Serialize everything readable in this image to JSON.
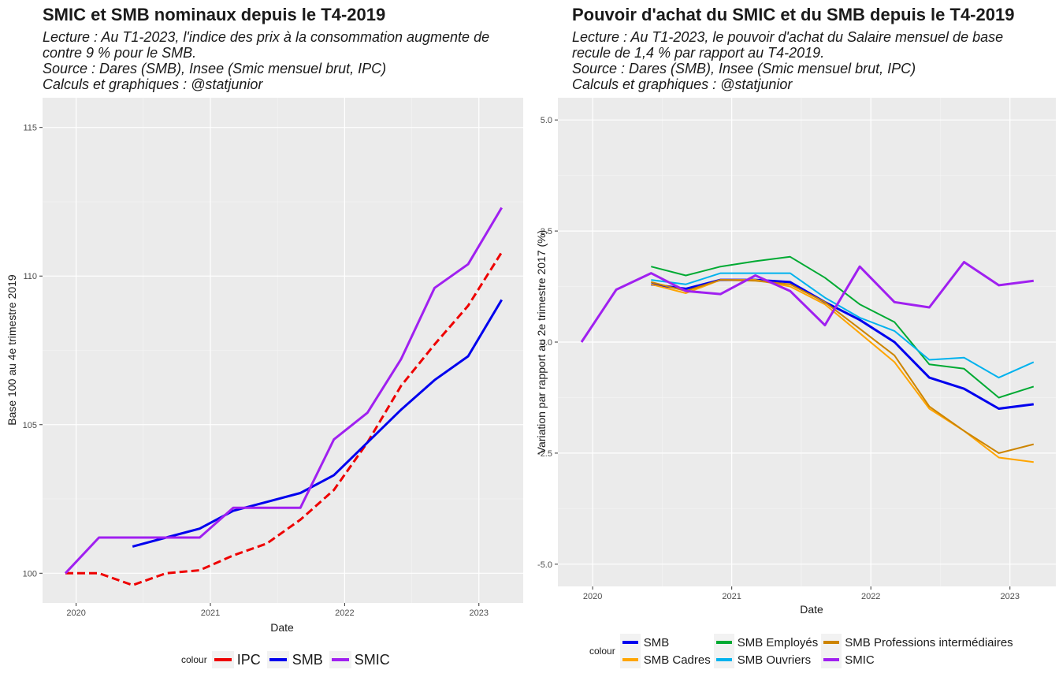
{
  "charts": {
    "left": {
      "title": "SMIC et SMB nominaux depuis le T4-2019",
      "subtitle_lines": [
        "Lecture : Au T1-2023, l'indice des prix à la consommation augmente de",
        "contre 9 % pour le SMB.",
        "Source : Dares (SMB), Insee (Smic mensuel brut, IPC)",
        "Calculs et graphiques : @statjunior"
      ],
      "xlabel": "Date",
      "ylabel": "Base 100 au 4e trimestre 2019",
      "legend_title": "colour"
    },
    "right": {
      "title": "Pouvoir d'achat du SMIC et du SMB depuis le T4-2019",
      "subtitle_lines": [
        "Lecture : Au T1-2023, le pouvoir d'achat du Salaire mensuel de base",
        "recule de 1,4 % par rapport au T4-2019.",
        "Source : Dares (SMB), Insee (Smic mensuel brut, IPC)",
        "Calculs et graphiques : @statjunior"
      ],
      "xlabel": "Date",
      "ylabel": "Variation par rapport au 2e trimestre 2017 (%)",
      "legend_title": "colour"
    }
  },
  "chart_data": [
    {
      "type": "line",
      "title": "SMIC et SMB nominaux depuis le T4-2019",
      "xlabel": "Date",
      "ylabel": "Base 100 au 4e trimestre 2019",
      "xlim": [
        2019.75,
        2023.33
      ],
      "ylim": [
        99.0,
        116.0
      ],
      "x_ticks": [
        2020,
        2021,
        2022,
        2023
      ],
      "y_ticks": [
        100,
        105,
        110,
        115
      ],
      "legend_position": "bottom",
      "series": [
        {
          "name": "IPC",
          "color": "#ee0000",
          "dashed": true,
          "x": [
            2019.92,
            2020.08,
            2020.17,
            2020.42,
            2020.67,
            2020.92,
            2021.17,
            2021.42,
            2021.67,
            2021.92,
            2022.17,
            2022.42,
            2022.67,
            2022.92,
            2023.17
          ],
          "y": [
            100.0,
            100.0,
            100.0,
            99.6,
            100.0,
            100.1,
            100.6,
            101.0,
            101.8,
            102.8,
            104.4,
            106.3,
            107.7,
            109.0,
            110.8
          ]
        },
        {
          "name": "SMB",
          "color": "#0000ee",
          "dashed": false,
          "x": [
            2020.42,
            2020.67,
            2020.92,
            2021.17,
            2021.42,
            2021.67,
            2021.92,
            2022.17,
            2022.42,
            2022.67,
            2022.92,
            2023.17
          ],
          "y": [
            100.9,
            101.2,
            101.5,
            102.1,
            102.4,
            102.7,
            103.3,
            104.4,
            105.5,
            106.5,
            107.3,
            109.2
          ]
        },
        {
          "name": "SMIC",
          "color": "#a020f0",
          "dashed": false,
          "x": [
            2019.92,
            2020.17,
            2020.42,
            2020.67,
            2020.92,
            2021.17,
            2021.42,
            2021.67,
            2021.92,
            2022.17,
            2022.42,
            2022.67,
            2022.92,
            2023.17
          ],
          "y": [
            100.0,
            101.2,
            101.2,
            101.2,
            101.2,
            102.2,
            102.2,
            102.2,
            104.5,
            105.4,
            107.2,
            109.6,
            110.4,
            112.3
          ]
        }
      ]
    },
    {
      "type": "line",
      "title": "Pouvoir d'achat du SMIC et du SMB depuis le T4-2019",
      "xlabel": "Date",
      "ylabel": "Variation par rapport au 2e trimestre 2017 (%)",
      "xlim": [
        2019.75,
        2023.33
      ],
      "ylim": [
        -5.5,
        5.5
      ],
      "x_ticks": [
        2020,
        2021,
        2022,
        2023
      ],
      "y_ticks": [
        -5.0,
        -2.5,
        0.0,
        2.5,
        5.0
      ],
      "y_tick_labels": [
        "-5.0",
        "-2.5",
        "0.0",
        "2.5",
        "5.0"
      ],
      "legend_position": "bottom",
      "series": [
        {
          "name": "SMB",
          "color": "#0000ee",
          "width": 3,
          "x": [
            2020.42,
            2020.67,
            2020.92,
            2021.17,
            2021.42,
            2021.67,
            2021.92,
            2022.17,
            2022.42,
            2022.67,
            2022.92,
            2023.17
          ],
          "y": [
            1.3,
            1.2,
            1.4,
            1.4,
            1.35,
            0.9,
            0.5,
            0.0,
            -0.8,
            -1.05,
            -1.5,
            -1.4
          ]
        },
        {
          "name": "SMB Cadres",
          "color": "#ffa500",
          "width": 2,
          "x": [
            2020.42,
            2020.67,
            2020.92,
            2021.17,
            2021.42,
            2021.67,
            2021.92,
            2022.17,
            2022.42,
            2022.67,
            2022.92,
            2023.17
          ],
          "y": [
            1.3,
            1.1,
            1.4,
            1.4,
            1.25,
            0.85,
            0.2,
            -0.45,
            -1.5,
            -2.0,
            -2.6,
            -2.7
          ]
        },
        {
          "name": "SMB Employés",
          "color": "#00aa33",
          "width": 2,
          "x": [
            2020.42,
            2020.67,
            2020.92,
            2021.17,
            2021.42,
            2021.67,
            2021.92,
            2022.17,
            2022.42,
            2022.67,
            2022.92,
            2023.17
          ],
          "y": [
            1.7,
            1.5,
            1.7,
            1.82,
            1.92,
            1.45,
            0.85,
            0.45,
            -0.5,
            -0.6,
            -1.25,
            -1.0
          ]
        },
        {
          "name": "SMB Ouvriers",
          "color": "#00b2ee",
          "width": 2,
          "x": [
            2020.42,
            2020.67,
            2020.92,
            2021.17,
            2021.42,
            2021.67,
            2021.92,
            2022.17,
            2022.42,
            2022.67,
            2022.92,
            2023.17
          ],
          "y": [
            1.4,
            1.3,
            1.55,
            1.55,
            1.55,
            1.0,
            0.55,
            0.25,
            -0.4,
            -0.35,
            -0.8,
            -0.45
          ]
        },
        {
          "name": "SMB Professions intermédiaires",
          "color": "#cd8500",
          "width": 2,
          "x": [
            2020.42,
            2020.67,
            2020.92,
            2021.17,
            2021.42,
            2021.67,
            2021.92,
            2022.17,
            2022.42,
            2022.67,
            2022.92,
            2023.17
          ],
          "y": [
            1.35,
            1.15,
            1.4,
            1.38,
            1.3,
            0.9,
            0.3,
            -0.3,
            -1.45,
            -2.0,
            -2.5,
            -2.3
          ]
        },
        {
          "name": "SMIC",
          "color": "#a020f0",
          "width": 3,
          "x": [
            2019.92,
            2020.17,
            2020.42,
            2020.67,
            2020.92,
            2021.17,
            2021.42,
            2021.67,
            2021.92,
            2022.17,
            2022.42,
            2022.67,
            2022.92,
            2023.17
          ],
          "y": [
            0.0,
            1.18,
            1.55,
            1.15,
            1.08,
            1.5,
            1.15,
            0.38,
            1.7,
            0.9,
            0.78,
            1.8,
            1.28,
            1.38
          ]
        }
      ]
    }
  ]
}
